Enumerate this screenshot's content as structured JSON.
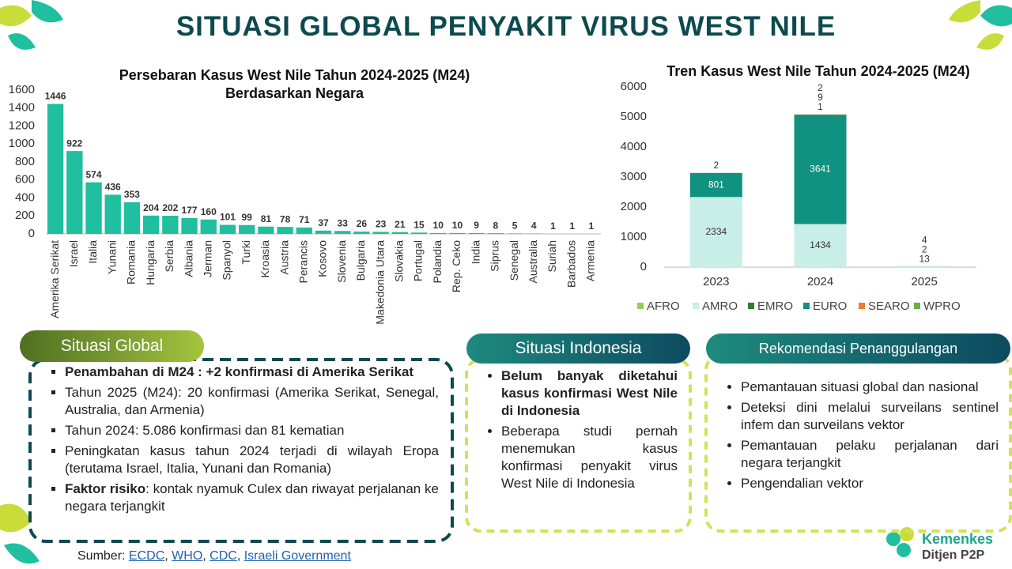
{
  "title": "SITUASI GLOBAL PENYAKIT VIRUS WEST NILE",
  "chart_data": [
    {
      "type": "bar",
      "title": "Persebaran Kasus West Nile Tahun 2024-2025 (M24) Berdasarkan Negara",
      "categories": [
        "Amerika Serikat",
        "Israel",
        "Italia",
        "Yunani",
        "Romania",
        "Hungaria",
        "Serbia",
        "Albania",
        "Jerman",
        "Spanyol",
        "Turki",
        "Kroasia",
        "Austria",
        "Perancis",
        "Kosovo",
        "Slovenia",
        "Bulgaria",
        "Makedonia Utara",
        "Slovakia",
        "Portugal",
        "Polandia",
        "Rep. Ceko",
        "India",
        "Siprus",
        "Senegal",
        "Australia",
        "Suriah",
        "Barbados",
        "Armenia"
      ],
      "values": [
        1446,
        922,
        574,
        436,
        353,
        204,
        202,
        177,
        160,
        101,
        99,
        81,
        78,
        71,
        37,
        33,
        26,
        23,
        21,
        15,
        10,
        10,
        9,
        8,
        5,
        4,
        1,
        1,
        1
      ],
      "color": "#1fbf9f",
      "ylim": [
        0,
        1600
      ],
      "yticks": [
        0,
        200,
        400,
        600,
        800,
        1000,
        1200,
        1400,
        1600
      ],
      "grid": false
    },
    {
      "type": "stacked_bar",
      "title": "Tren Kasus West Nile Tahun 2024-2025 (M24)",
      "categories": [
        "2023",
        "2024",
        "2025"
      ],
      "series": [
        {
          "name": "AFRO",
          "color": "#8fcf5a",
          "values": [
            null,
            1,
            null
          ]
        },
        {
          "name": "AMRO",
          "color": "#c9ede7",
          "values": [
            2334,
            1434,
            13
          ]
        },
        {
          "name": "EMRO",
          "color": "#2e7d32",
          "values": [
            null,
            null,
            null
          ]
        },
        {
          "name": "EURO",
          "color": "#11917f",
          "values": [
            801,
            3641,
            2
          ]
        },
        {
          "name": "SEARO",
          "color": "#ed7d31",
          "values": [
            null,
            9,
            null
          ]
        },
        {
          "name": "WPRO",
          "color": "#70ad47",
          "values": [
            2,
            2,
            4
          ]
        }
      ],
      "ylim": [
        0,
        6000
      ],
      "yticks": [
        0,
        1000,
        2000,
        3000,
        4000,
        5000,
        6000
      ],
      "grid": false,
      "legend": "bottom"
    }
  ],
  "situasi_global": {
    "heading": "Situasi Global",
    "items": [
      {
        "bold": "Penambahan di M24 : +2 konfirmasi di Amerika Serikat"
      },
      {
        "text": "Tahun 2025 (M24): 20 konfirmasi (Amerika Serikat, Senegal, Australia, dan Armenia)"
      },
      {
        "text": "Tahun 2024: 5.086 konfirmasi dan 81 kematian"
      },
      {
        "text": "Peningkatan kasus tahun 2024 terjadi di wilayah Eropa (terutama Israel, Italia, Yunani dan Romania)"
      },
      {
        "bold": "Faktor risiko",
        "text": ": kontak nyamuk Culex dan riwayat perjalanan ke negara terjangkit"
      }
    ]
  },
  "situasi_indonesia": {
    "heading": "Situasi Indonesia",
    "items": [
      {
        "bold": "Belum banyak diketahui kasus konfirmasi West Nile di Indonesia"
      },
      {
        "text": "Beberapa studi pernah menemukan kasus konfirmasi penyakit virus West Nile di Indonesia"
      }
    ]
  },
  "rekomendasi": {
    "heading": "Rekomendasi Penanggulangan",
    "items": [
      {
        "text": "Pemantauan situasi global dan nasional"
      },
      {
        "text": "Deteksi dini melalui surveilans sentinel infem dan surveilans vektor"
      },
      {
        "text": "Pemantauan pelaku perjalanan dari negara terjangkit"
      },
      {
        "text": "Pengendalian vektor"
      }
    ]
  },
  "source": {
    "label": "Sumber:",
    "separator": ", ",
    "links": [
      "ECDC",
      "WHO",
      "CDC",
      "Israeli Government"
    ]
  },
  "logo": {
    "name": "Kemenkes",
    "unit": "Ditjen P2P"
  }
}
